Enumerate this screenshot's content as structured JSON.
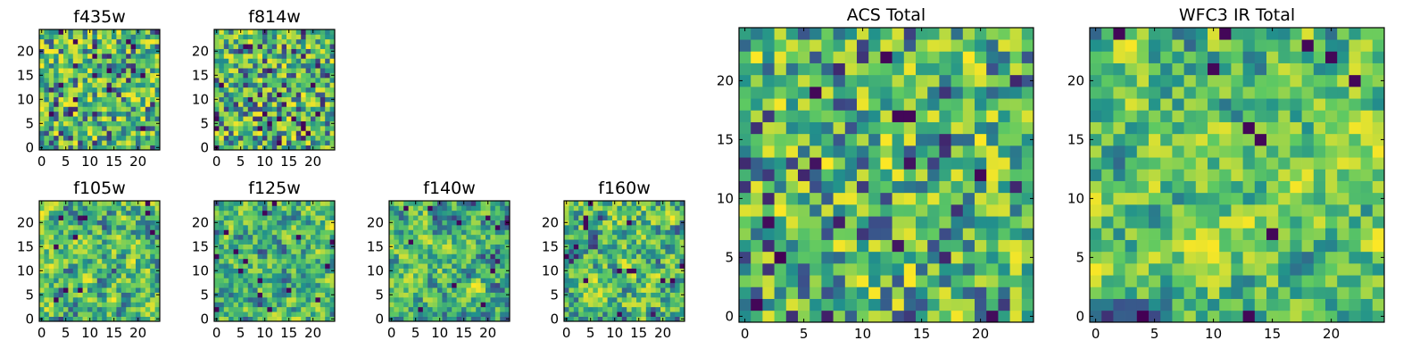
{
  "figure": {
    "panel_titles": [
      "f435w",
      "f814w",
      "f105w",
      "f125w",
      "f140w",
      "f160w",
      "ACS Total",
      "WFC3 IR Total"
    ]
  },
  "colormap": {
    "name": "viridis",
    "stops": [
      "#440154",
      "#3b528b",
      "#21918c",
      "#5ec962",
      "#fde725"
    ]
  },
  "chart_data": [
    {
      "type": "heatmap",
      "title": "f435w",
      "grid_size": [
        25,
        25
      ],
      "xlim": [
        -0.5,
        24.5
      ],
      "ylim": [
        -0.5,
        24.5
      ],
      "xticks": [
        0,
        5,
        10,
        15,
        20
      ],
      "yticks": [
        0,
        5,
        10,
        15,
        20
      ],
      "origin": "lower",
      "colormap": "viridis",
      "character": "fine noise",
      "seed": 11
    },
    {
      "type": "heatmap",
      "title": "f814w",
      "grid_size": [
        25,
        25
      ],
      "xlim": [
        -0.5,
        24.5
      ],
      "ylim": [
        -0.5,
        24.5
      ],
      "xticks": [
        0,
        5,
        10,
        15,
        20
      ],
      "yticks": [
        0,
        5,
        10,
        15,
        20
      ],
      "origin": "lower",
      "colormap": "viridis",
      "character": "fine noise",
      "seed": 23
    },
    {
      "type": "heatmap",
      "title": "f105w",
      "grid_size": [
        25,
        25
      ],
      "xlim": [
        -0.5,
        24.5
      ],
      "ylim": [
        -0.5,
        24.5
      ],
      "xticks": [
        0,
        5,
        10,
        15,
        20
      ],
      "yticks": [
        0,
        5,
        10,
        15,
        20
      ],
      "origin": "lower",
      "colormap": "viridis",
      "character": "correlated noise",
      "seed": 37
    },
    {
      "type": "heatmap",
      "title": "f125w",
      "grid_size": [
        25,
        25
      ],
      "xlim": [
        -0.5,
        24.5
      ],
      "ylim": [
        -0.5,
        24.5
      ],
      "xticks": [
        0,
        5,
        10,
        15,
        20
      ],
      "yticks": [
        0,
        5,
        10,
        15,
        20
      ],
      "origin": "lower",
      "colormap": "viridis",
      "character": "correlated noise",
      "seed": 41
    },
    {
      "type": "heatmap",
      "title": "f140w",
      "grid_size": [
        25,
        25
      ],
      "xlim": [
        -0.5,
        24.5
      ],
      "ylim": [
        -0.5,
        24.5
      ],
      "xticks": [
        0,
        5,
        10,
        15,
        20
      ],
      "yticks": [
        0,
        5,
        10,
        15,
        20
      ],
      "origin": "lower",
      "colormap": "viridis",
      "character": "correlated noise",
      "seed": 53
    },
    {
      "type": "heatmap",
      "title": "f160w",
      "grid_size": [
        25,
        25
      ],
      "xlim": [
        -0.5,
        24.5
      ],
      "ylim": [
        -0.5,
        24.5
      ],
      "xticks": [
        0,
        5,
        10,
        15,
        20
      ],
      "yticks": [
        0,
        5,
        10,
        15,
        20
      ],
      "origin": "lower",
      "colormap": "viridis",
      "character": "correlated noise",
      "seed": 67
    },
    {
      "type": "heatmap",
      "title": "ACS Total",
      "grid_size": [
        25,
        25
      ],
      "xlim": [
        -0.5,
        24.5
      ],
      "ylim": [
        -0.5,
        24.5
      ],
      "xticks": [
        0,
        5,
        10,
        15,
        20
      ],
      "yticks": [
        0,
        5,
        10,
        15,
        20
      ],
      "origin": "lower",
      "colormap": "viridis",
      "character": "noise",
      "seed": 79
    },
    {
      "type": "heatmap",
      "title": "WFC3 IR Total",
      "grid_size": [
        25,
        25
      ],
      "xlim": [
        -0.5,
        24.5
      ],
      "ylim": [
        -0.5,
        24.5
      ],
      "xticks": [
        0,
        5,
        10,
        15,
        20
      ],
      "yticks": [
        0,
        5,
        10,
        15,
        20
      ],
      "origin": "lower",
      "colormap": "viridis",
      "character": "correlated noise",
      "seed": 97
    }
  ]
}
